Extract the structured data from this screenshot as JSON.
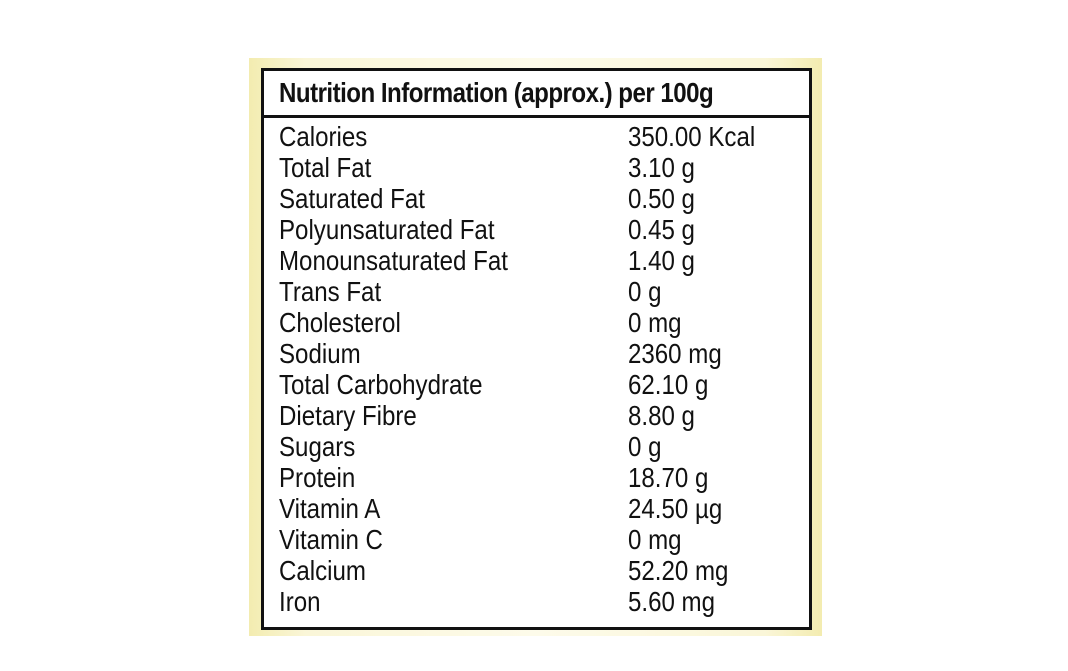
{
  "title": "Nutrition Information (approx.) per 100g",
  "rows": [
    {
      "nutrient": "Calories",
      "amount": "350.00 Kcal"
    },
    {
      "nutrient": "Total Fat",
      "amount": "3.10 g"
    },
    {
      "nutrient": "Saturated Fat",
      "amount": "0.50 g"
    },
    {
      "nutrient": "Polyunsaturated Fat",
      "amount": "0.45 g"
    },
    {
      "nutrient": "Monounsaturated Fat",
      "amount": "1.40 g"
    },
    {
      "nutrient": "Trans Fat",
      "amount": "0 g"
    },
    {
      "nutrient": "Cholesterol",
      "amount": "0 mg"
    },
    {
      "nutrient": "Sodium",
      "amount": "2360 mg"
    },
    {
      "nutrient": "Total Carbohydrate",
      "amount": "62.10 g"
    },
    {
      "nutrient": "Dietary Fibre",
      "amount": "8.80 g"
    },
    {
      "nutrient": "Sugars",
      "amount": "0 g"
    },
    {
      "nutrient": "Protein",
      "amount": "18.70 g"
    },
    {
      "nutrient": "Vitamin A",
      "amount": "24.50 µg"
    },
    {
      "nutrient": "Vitamin C",
      "amount": "0 mg"
    },
    {
      "nutrient": "Calcium",
      "amount": "52.20 mg"
    },
    {
      "nutrient": "Iron",
      "amount": "5.60 mg"
    }
  ],
  "colors": {
    "text": "#111111",
    "border": "#111111",
    "backing": "#f6f1bf",
    "panel": "#ffffff"
  }
}
